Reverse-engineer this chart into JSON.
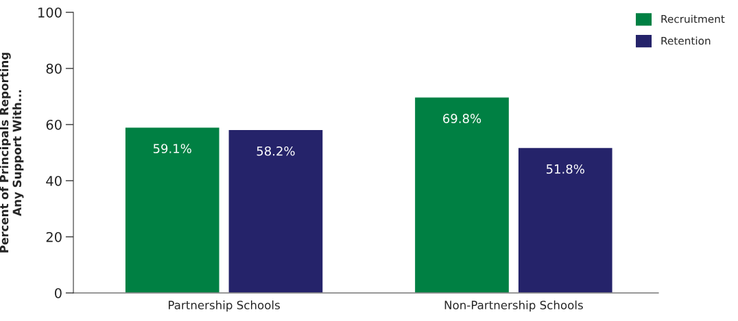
{
  "chart_data": {
    "type": "bar",
    "ylabel": "Percent of Principals Reporting\nAny Support With...",
    "categories": [
      "Partnership Schools",
      "Non-Partnership Schools"
    ],
    "series": [
      {
        "name": "Recruitment",
        "color": "#008043",
        "values": [
          59.1,
          69.8
        ],
        "value_labels": [
          "59.1%",
          "69.8%"
        ]
      },
      {
        "name": "Retention",
        "color": "#25236a",
        "values": [
          58.2,
          51.8
        ],
        "value_labels": [
          "58.2%",
          "51.8%"
        ]
      }
    ],
    "ylim": [
      0,
      100
    ],
    "yticks": [
      0,
      20,
      40,
      60,
      80,
      100
    ],
    "grid": false,
    "legend": "top right"
  }
}
